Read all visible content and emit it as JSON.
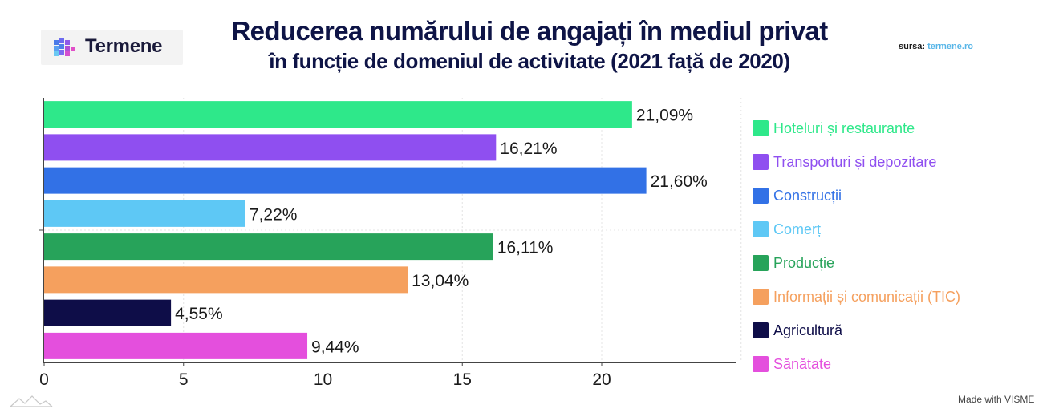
{
  "brand": {
    "name": "Termene"
  },
  "title": {
    "line1": "Reducerea numărului de angajați în mediul privat",
    "line2": "în funcție de domeniul de activitate (2021 față de 2020)"
  },
  "source": {
    "label": "sursa:",
    "value": "termene.ro"
  },
  "chart_data": {
    "type": "bar",
    "orientation": "horizontal",
    "categories": [
      "Hoteluri și restaurante",
      "Transporturi și depozitare",
      "Construcții",
      "Comerț",
      "Producție",
      "Informații și comunicații (TIC)",
      "Agricultură",
      "Sănătate"
    ],
    "values": [
      21.09,
      16.21,
      21.6,
      7.22,
      16.11,
      13.04,
      4.55,
      9.44
    ],
    "data_labels": [
      "21,09%",
      "16,21%",
      "21,60%",
      "7,22%",
      "16,11%",
      "13,04%",
      "4,55%",
      "9,44%"
    ],
    "colors": [
      "#2ee88a",
      "#8f4ff0",
      "#3271e6",
      "#5ec8f5",
      "#27a35a",
      "#f5a05e",
      "#0e0d48",
      "#e44fdd"
    ],
    "xlim": [
      0,
      25
    ],
    "x_ticks": [
      0,
      5,
      10,
      15,
      20
    ],
    "title": "Reducerea numărului de angajați în mediul privat în funcție de domeniul de activitate (2021 față de 2020)",
    "xlabel": "",
    "ylabel": "",
    "grid": true,
    "legend": "right"
  },
  "footer": {
    "watermark": "Made with VISME"
  }
}
